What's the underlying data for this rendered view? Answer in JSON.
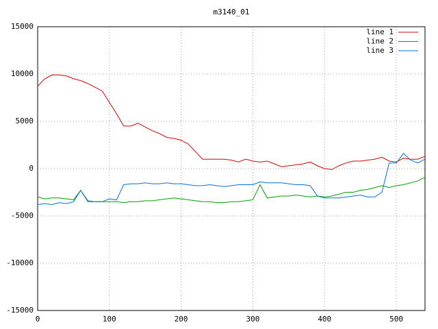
{
  "chart_data": {
    "type": "line",
    "title": "m3140_01",
    "x": [
      0,
      10,
      20,
      30,
      40,
      50,
      60,
      70,
      80,
      90,
      100,
      110,
      120,
      130,
      140,
      150,
      160,
      170,
      180,
      190,
      200,
      210,
      220,
      230,
      240,
      250,
      260,
      270,
      280,
      290,
      300,
      310,
      320,
      330,
      340,
      350,
      360,
      370,
      380,
      390,
      400,
      410,
      420,
      430,
      440,
      450,
      460,
      470,
      480,
      490,
      500,
      510,
      520,
      530,
      540
    ],
    "series": [
      {
        "name": "line 1",
        "color": "#e00000",
        "values": [
          8700,
          9500,
          9900,
          9900,
          9800,
          9500,
          9300,
          9000,
          8600,
          8200,
          7000,
          5800,
          4500,
          4500,
          4800,
          4400,
          4000,
          3700,
          3300,
          3200,
          3000,
          2600,
          1800,
          1000,
          1000,
          1000,
          1000,
          900,
          700,
          1000,
          800,
          700,
          800,
          500,
          200,
          300,
          400,
          500,
          700,
          300,
          0,
          -100,
          300,
          600,
          800,
          800,
          900,
          1000,
          1200,
          800,
          700,
          1100,
          1000,
          1000,
          1300
        ]
      },
      {
        "name": "line 2",
        "color": "#00a000",
        "values": [
          -3000,
          -3200,
          -3100,
          -3100,
          -3200,
          -3300,
          -2300,
          -3500,
          -3500,
          -3500,
          -3500,
          -3500,
          -3600,
          -3500,
          -3500,
          -3400,
          -3400,
          -3300,
          -3200,
          -3100,
          -3200,
          -3300,
          -3400,
          -3500,
          -3500,
          -3600,
          -3600,
          -3500,
          -3500,
          -3400,
          -3300,
          -1700,
          -3100,
          -3000,
          -2900,
          -2900,
          -2800,
          -2900,
          -3000,
          -2900,
          -3000,
          -2900,
          -2700,
          -2500,
          -2500,
          -2300,
          -2200,
          -2000,
          -1800,
          -2000,
          -1800,
          -1700,
          -1500,
          -1300,
          -900
        ]
      },
      {
        "name": "line 3",
        "color": "#0070e0",
        "values": [
          -3800,
          -3700,
          -3800,
          -3600,
          -3700,
          -3500,
          -2300,
          -3400,
          -3500,
          -3500,
          -3200,
          -3300,
          -1700,
          -1600,
          -1600,
          -1500,
          -1600,
          -1600,
          -1500,
          -1600,
          -1600,
          -1700,
          -1800,
          -1800,
          -1700,
          -1800,
          -1900,
          -1800,
          -1700,
          -1700,
          -1700,
          -1400,
          -1500,
          -1500,
          -1500,
          -1600,
          -1700,
          -1700,
          -1800,
          -2900,
          -3100,
          -3100,
          -3100,
          -3000,
          -2900,
          -2800,
          -3000,
          -3000,
          -2500,
          600,
          600,
          1600,
          900,
          600,
          1000
        ]
      }
    ],
    "xlim": [
      0,
      540
    ],
    "xticks": [
      0,
      100,
      200,
      300,
      400,
      500
    ],
    "ylim": [
      -15000,
      15000
    ],
    "yticks": [
      -15000,
      -10000,
      -5000,
      0,
      5000,
      10000,
      15000
    ],
    "grid": true,
    "legend": "top-right"
  }
}
